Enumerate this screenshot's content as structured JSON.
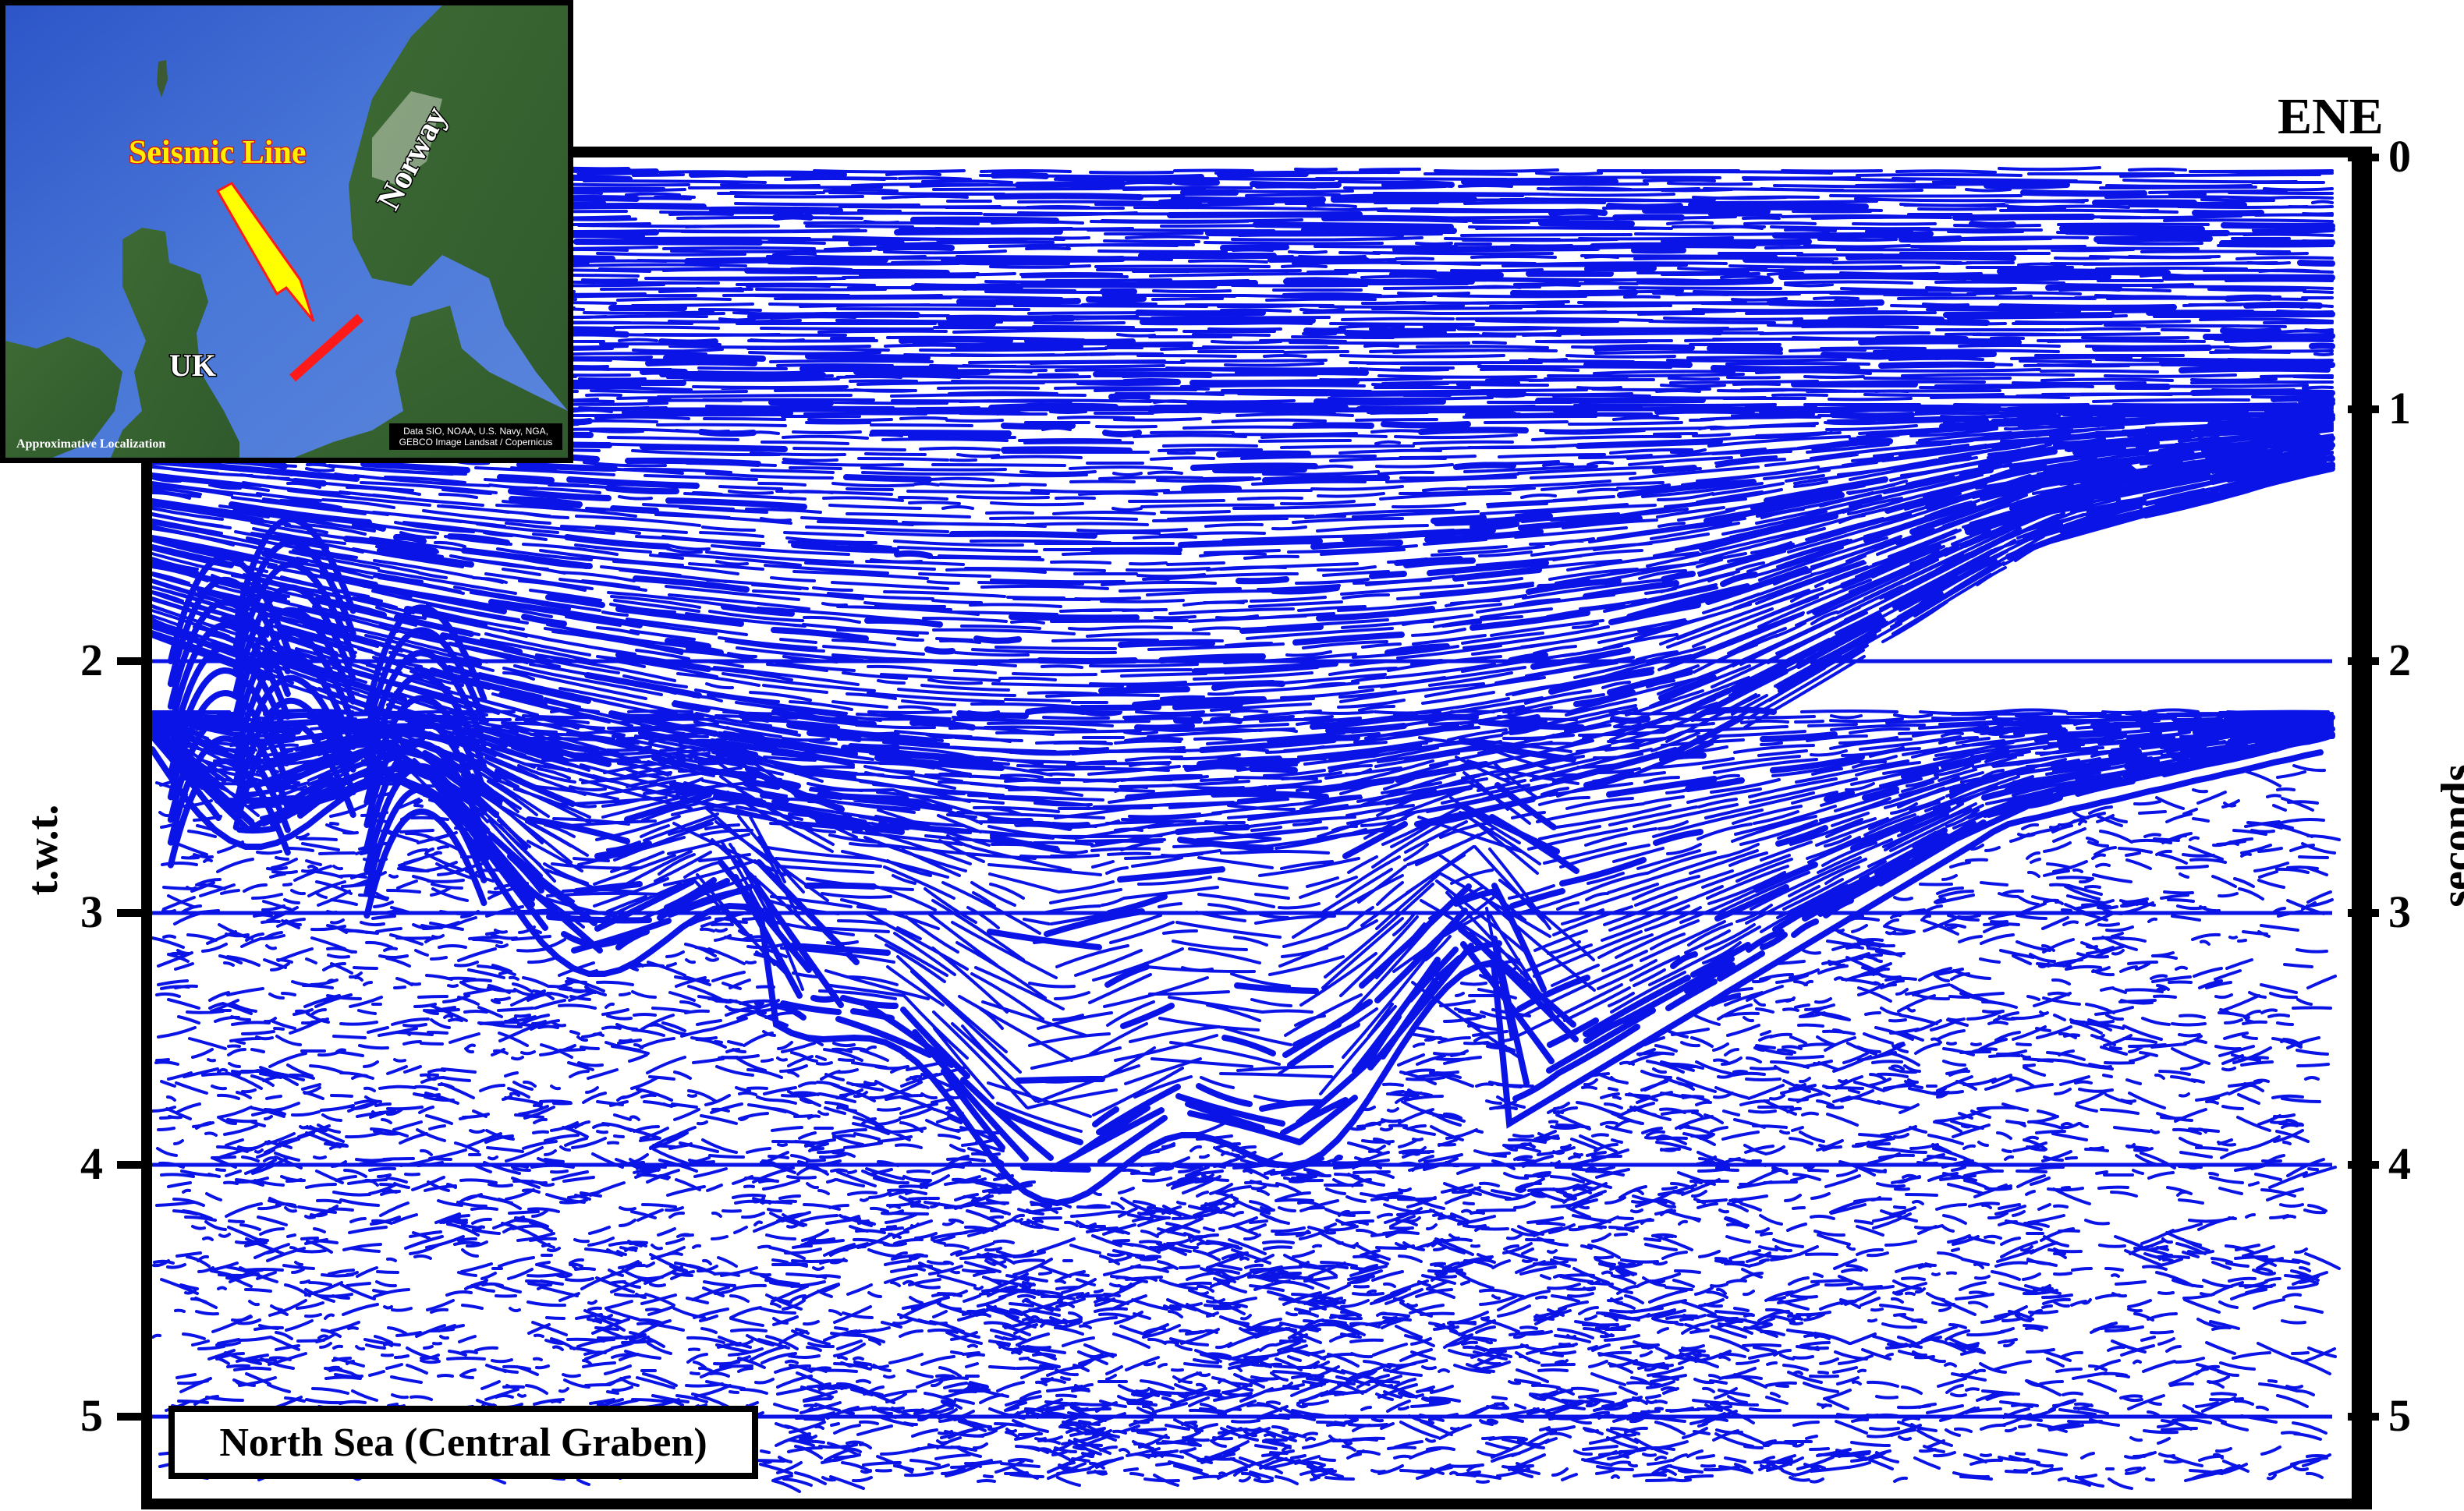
{
  "figure": {
    "direction_label": "ENE",
    "section_title": "North Sea (Central Graben)",
    "left_axis_title": "t.w.t.",
    "right_axis_title": "seconds",
    "right_ticks": [
      "0",
      "1",
      "2",
      "3",
      "4",
      "5"
    ],
    "left_ticks": [
      "2",
      "3",
      "4",
      "5"
    ],
    "time_range_seconds": [
      0,
      5.3
    ],
    "reflector_color": "#0a14e6"
  },
  "inset_map": {
    "callout_label": "Seismic Line",
    "labels": {
      "norway": "Norway",
      "uk": "UK"
    },
    "footer_left": "Approximative Localization",
    "attribution": "Data SIO, NOAA, U.S. Navy, NGA, GEBCO Image Landsat / Copernicus",
    "line_color": "#ff1a1a",
    "arrow_color": "#ffff00"
  }
}
